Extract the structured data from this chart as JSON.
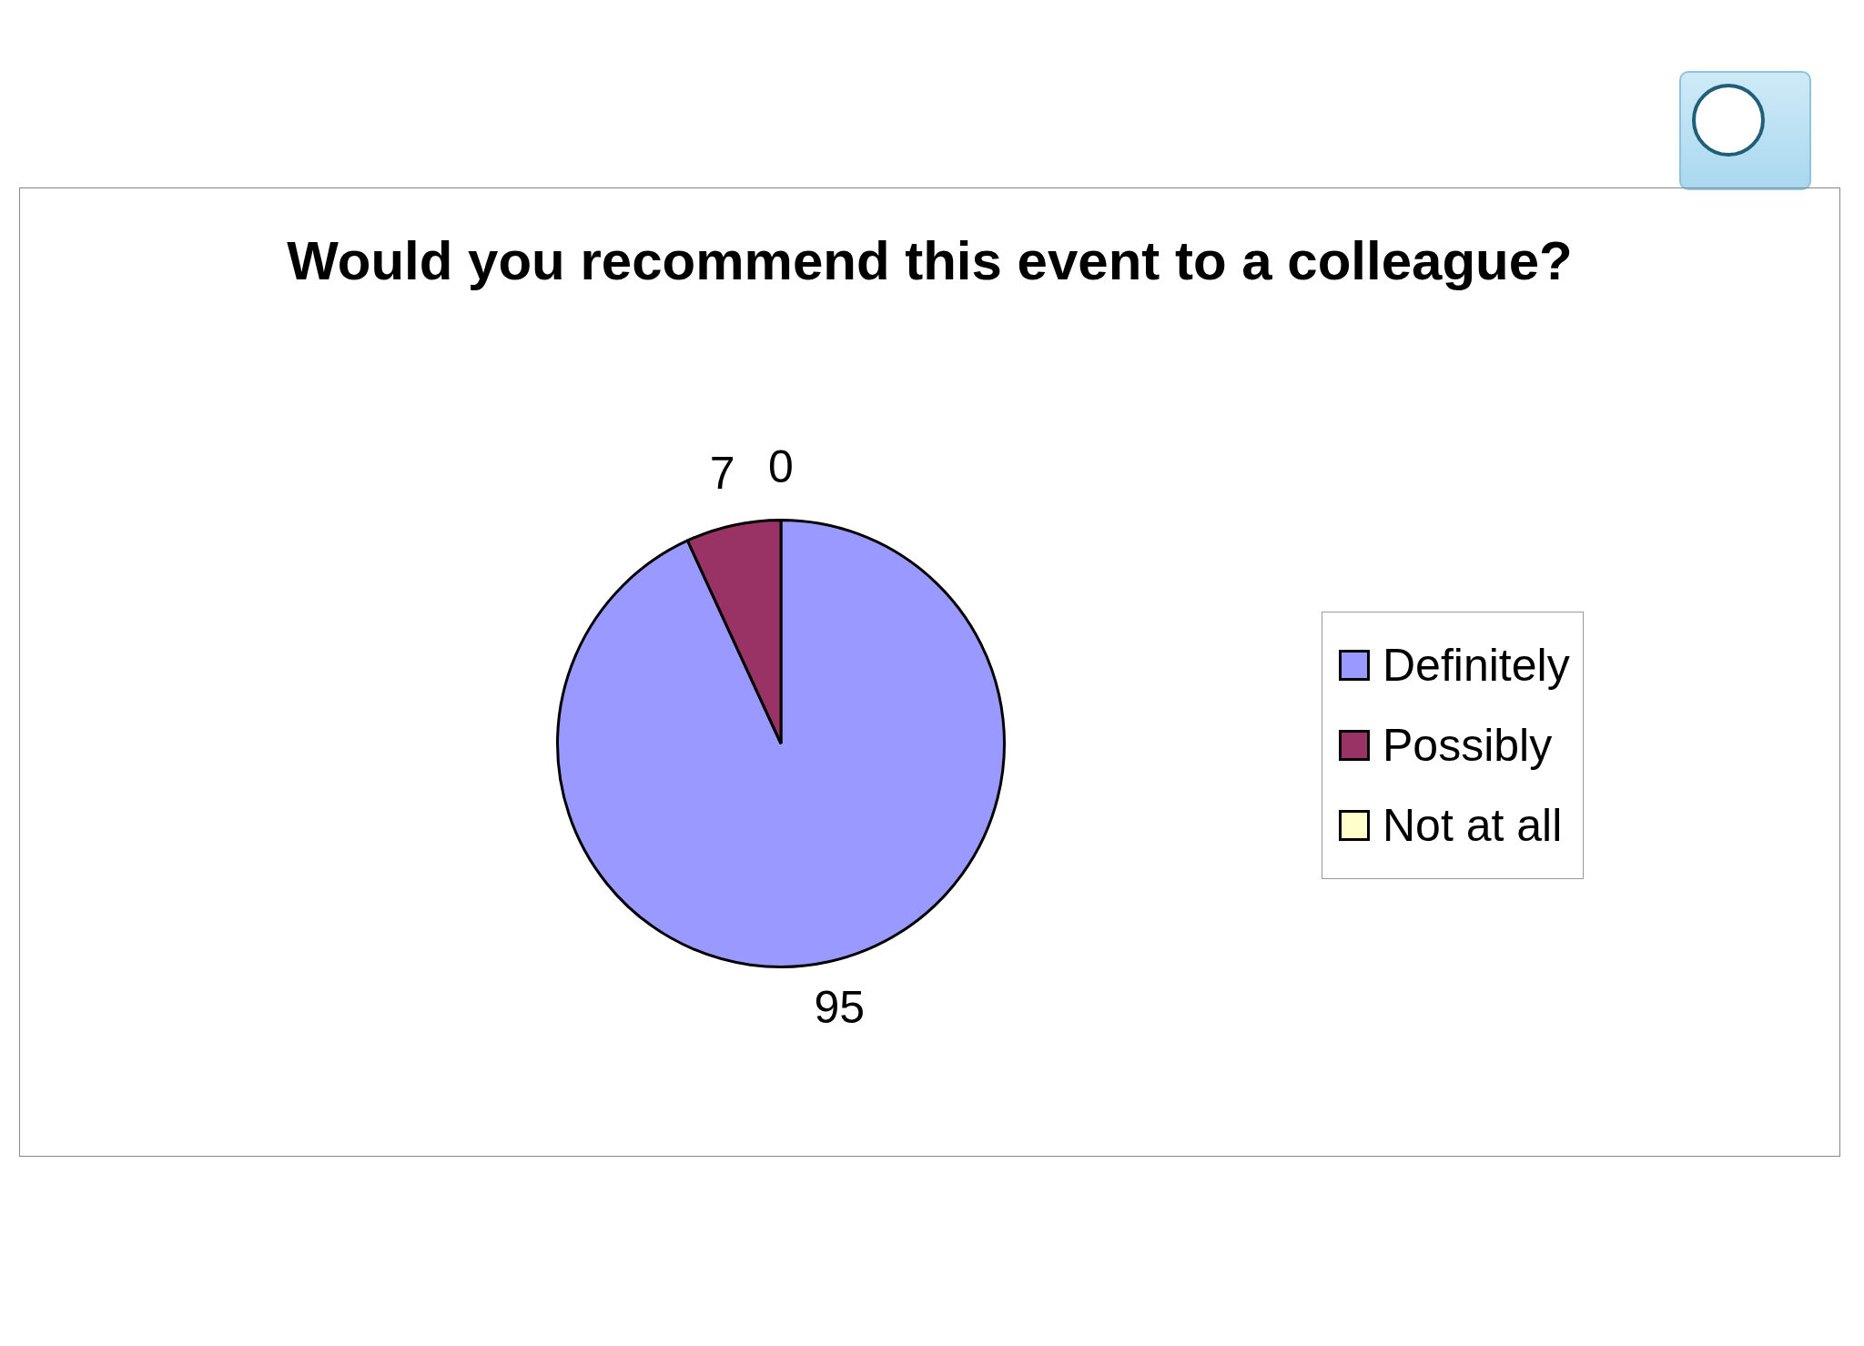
{
  "chart_data": {
    "type": "pie",
    "title": "Would you recommend this event to a colleague?",
    "categories": [
      "Definitely",
      "Possibly",
      "Not at all"
    ],
    "values": [
      95,
      7,
      0
    ],
    "colors": [
      "#9999ff",
      "#993366",
      "#ffffcc"
    ],
    "value_labels": [
      "95",
      "7",
      "0"
    ],
    "legend": "right"
  }
}
